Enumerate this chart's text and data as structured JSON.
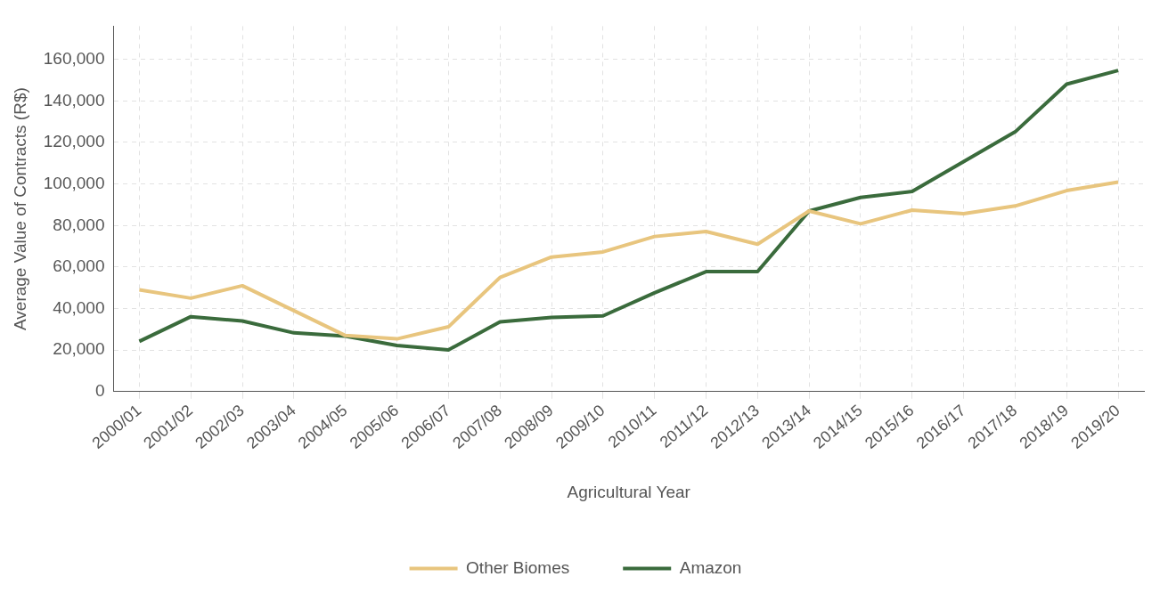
{
  "chart_data": {
    "type": "line",
    "xlabel": "Agricultural Year",
    "ylabel": "Average Value of Contracts (R$)",
    "categories": [
      "2000/01",
      "2001/02",
      "2002/03",
      "2003/04",
      "2004/05",
      "2005/06",
      "2006/07",
      "2007/08",
      "2008/09",
      "2009/10",
      "2010/11",
      "2011/12",
      "2012/13",
      "2013/14",
      "2014/15",
      "2015/16",
      "2016/17",
      "2017/18",
      "2018/19",
      "2019/20"
    ],
    "series": [
      {
        "name": "Other Biomes",
        "color": "#e8c57e",
        "values": [
          49000,
          45000,
          51000,
          39000,
          27000,
          25400,
          31200,
          55000,
          64800,
          67300,
          74700,
          77100,
          71000,
          87000,
          80800,
          87400,
          85700,
          89400,
          96800,
          100900
        ]
      },
      {
        "name": "Amazon",
        "color": "#3a6b3c",
        "values": [
          24200,
          36100,
          34000,
          28300,
          26700,
          22200,
          20100,
          33600,
          35700,
          36500,
          47600,
          57800,
          57800,
          87000,
          93500,
          96400,
          110800,
          125100,
          148100,
          154700
        ]
      }
    ],
    "ylim": [
      0,
      176000
    ],
    "yticks": [
      0,
      {
        "value": 20000,
        "label": "20,000"
      },
      {
        "value": 40000,
        "label": "40,000"
      },
      {
        "value": 60000,
        "label": "60,000"
      },
      {
        "value": 80000,
        "label": "80,000"
      },
      {
        "value": 100000,
        "label": "100,000"
      },
      {
        "value": 120000,
        "label": "120,000"
      },
      {
        "value": 140000,
        "label": "140,000"
      },
      {
        "value": 160000,
        "label": "160,000"
      }
    ],
    "grid": true,
    "legend": "bottom",
    "marker": "none",
    "line_style": "solid"
  }
}
